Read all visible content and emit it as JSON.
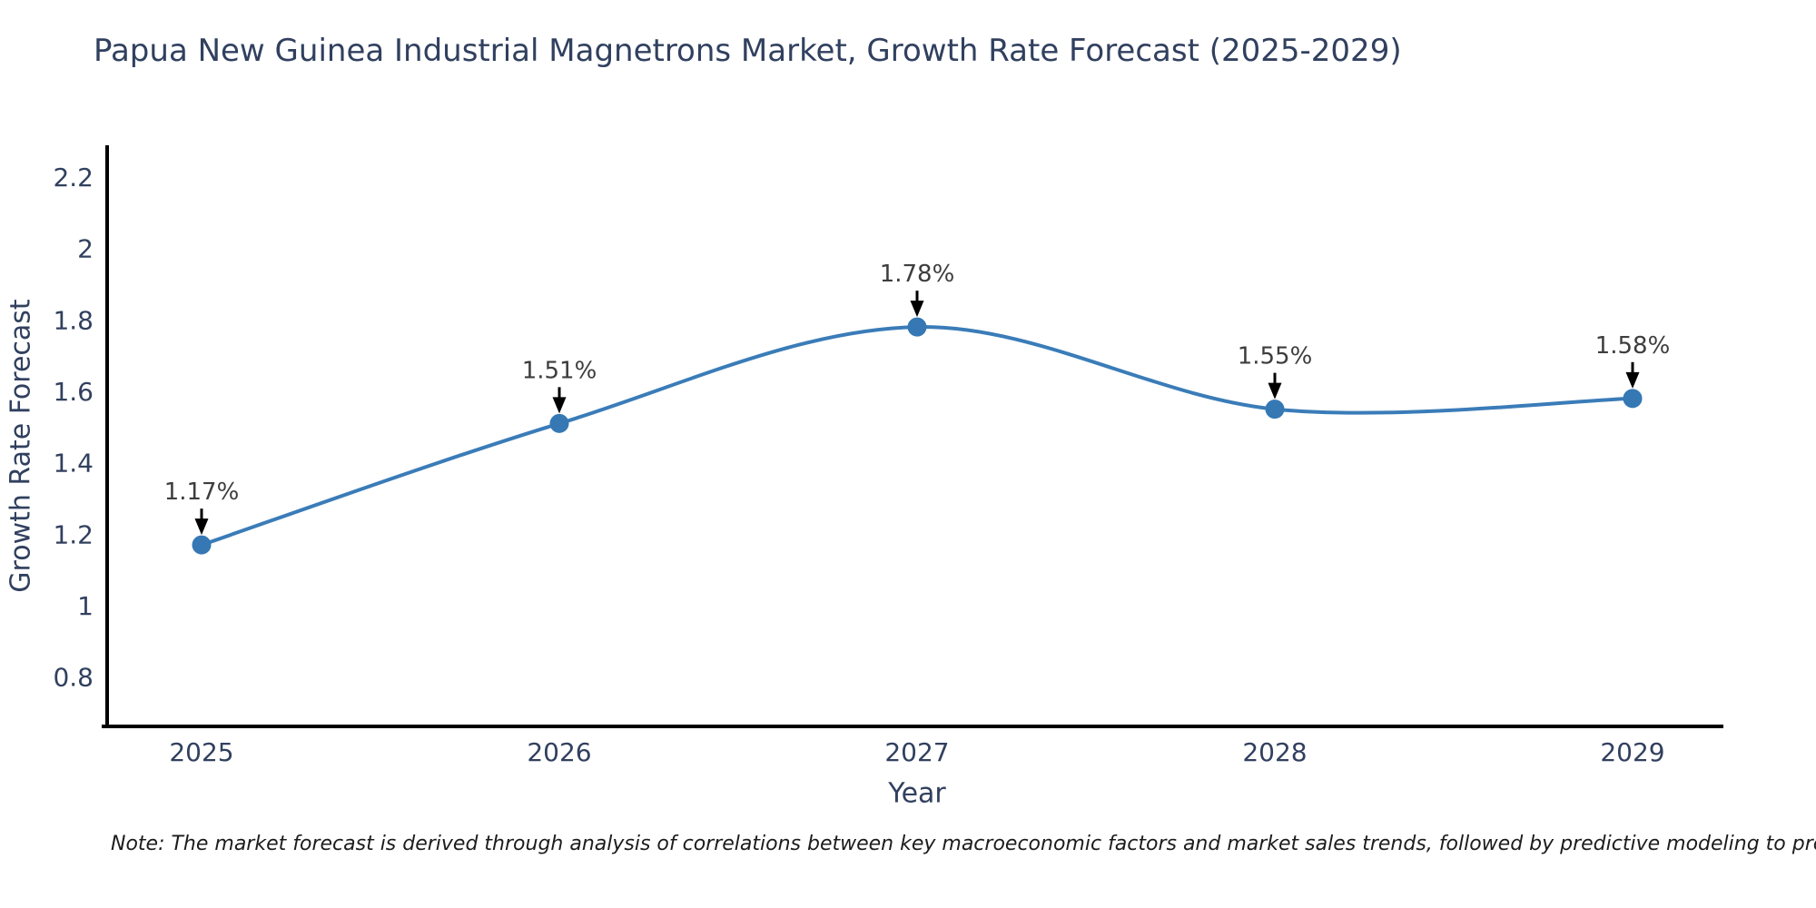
{
  "title": "Papua New Guinea Industrial Magnetrons Market, Growth Rate Forecast (2025-2029)",
  "note": "Note: The market forecast is derived through analysis of correlations between key macroeconomic factors and market sales trends, followed by predictive modeling to project future sales",
  "chart_data": {
    "type": "line",
    "title": "Papua New Guinea Industrial Magnetrons Market, Growth Rate Forecast (2025-2029)",
    "xlabel": "Year",
    "ylabel": "Growth Rate Forecast",
    "x": [
      2025,
      2026,
      2027,
      2028,
      2029
    ],
    "series": [
      {
        "name": "Growth Rate Forecast",
        "values": [
          1.17,
          1.51,
          1.78,
          1.55,
          1.58
        ]
      }
    ],
    "point_labels": [
      "1.17%",
      "1.51%",
      "1.78%",
      "1.55%",
      "1.58%"
    ],
    "xtick_labels": [
      "2025",
      "2026",
      "2027",
      "2028",
      "2029"
    ],
    "ytick_values": [
      0.8,
      1.0,
      1.2,
      1.4,
      1.6,
      1.8,
      2.0,
      2.2
    ],
    "ytick_labels": [
      "0.8",
      "1",
      "1.2",
      "1.4",
      "1.6",
      "1.8",
      "2",
      "2.2"
    ],
    "ylim": [
      0.66,
      2.29
    ],
    "line_shape": "spline",
    "grid": false,
    "legend_position": "none",
    "annotation_style": "down-arrow",
    "colors": {
      "line": "#3a7cb8",
      "marker": "#3578b4",
      "spine": "#000000",
      "arrow": "#000000",
      "axis_text": "#31405f",
      "annotation_text": "#3d3d3d",
      "background": "#ffffff"
    }
  }
}
